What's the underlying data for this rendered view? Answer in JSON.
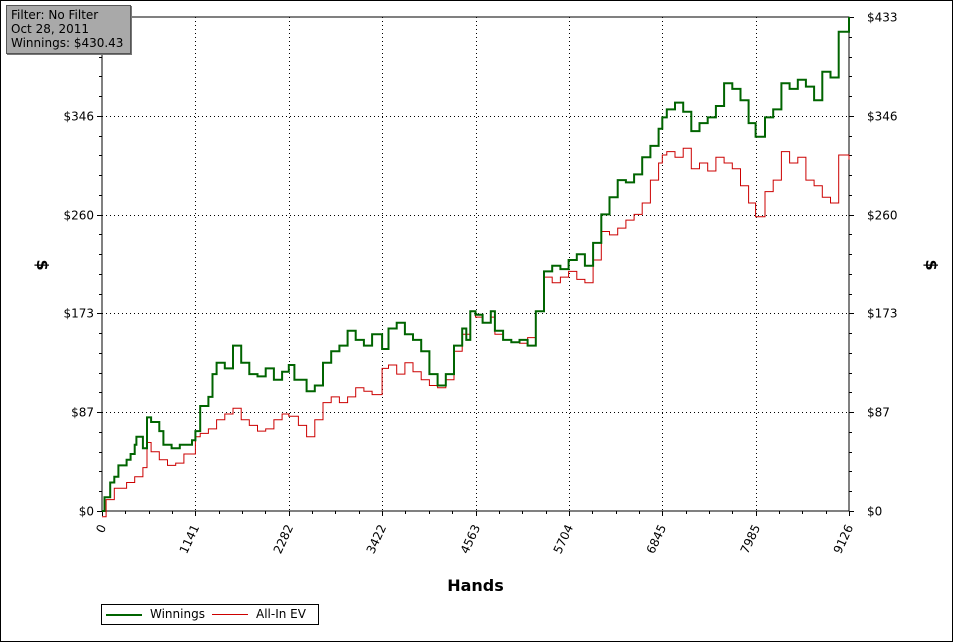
{
  "info_box": {
    "filter": "Filter: No Filter",
    "date": "Oct 28, 2011",
    "winnings": "Winnings: $430.43"
  },
  "colors": {
    "winnings": "#006400",
    "allin_ev": "#cc0000",
    "grid": "#000000"
  },
  "legend": {
    "winnings_label": "Winnings",
    "allin_label": "All-In EV"
  },
  "chart_data": {
    "type": "line",
    "title": "",
    "xlabel": "Hands",
    "ylabel": "$",
    "ylabel_right": "$",
    "x_ticks": [
      "0",
      "1141",
      "2282",
      "3422",
      "4563",
      "5704",
      "6845",
      "7985",
      "9126"
    ],
    "x_tick_values": [
      0,
      1141,
      2282,
      3422,
      4563,
      5704,
      6845,
      7985,
      9126
    ],
    "y_ticks": [
      "$0",
      "$87",
      "$173",
      "$260",
      "$346",
      "$433"
    ],
    "y_tick_values": [
      0,
      86.6,
      173.2,
      259.8,
      346.4,
      433
    ],
    "xlim": [
      0,
      9126
    ],
    "ylim": [
      0,
      433
    ],
    "grid": true,
    "legend_position": "bottom-left",
    "series": [
      {
        "name": "Winnings",
        "color": "#006400",
        "points": [
          [
            0,
            0
          ],
          [
            30,
            12
          ],
          [
            100,
            25
          ],
          [
            150,
            30
          ],
          [
            200,
            40
          ],
          [
            300,
            45
          ],
          [
            350,
            50
          ],
          [
            400,
            58
          ],
          [
            420,
            65
          ],
          [
            500,
            55
          ],
          [
            550,
            82
          ],
          [
            600,
            78
          ],
          [
            700,
            70
          ],
          [
            750,
            58
          ],
          [
            850,
            55
          ],
          [
            950,
            58
          ],
          [
            1100,
            62
          ],
          [
            1141,
            70
          ],
          [
            1200,
            92
          ],
          [
            1300,
            100
          ],
          [
            1350,
            120
          ],
          [
            1400,
            130
          ],
          [
            1500,
            125
          ],
          [
            1600,
            145
          ],
          [
            1700,
            130
          ],
          [
            1800,
            120
          ],
          [
            1900,
            118
          ],
          [
            2000,
            125
          ],
          [
            2100,
            115
          ],
          [
            2200,
            122
          ],
          [
            2282,
            128
          ],
          [
            2350,
            115
          ],
          [
            2500,
            105
          ],
          [
            2600,
            110
          ],
          [
            2700,
            130
          ],
          [
            2800,
            140
          ],
          [
            2900,
            145
          ],
          [
            3000,
            158
          ],
          [
            3100,
            150
          ],
          [
            3200,
            145
          ],
          [
            3300,
            155
          ],
          [
            3422,
            142
          ],
          [
            3500,
            160
          ],
          [
            3600,
            165
          ],
          [
            3700,
            155
          ],
          [
            3800,
            150
          ],
          [
            3900,
            140
          ],
          [
            4000,
            120
          ],
          [
            4100,
            110
          ],
          [
            4200,
            120
          ],
          [
            4300,
            145
          ],
          [
            4400,
            160
          ],
          [
            4450,
            150
          ],
          [
            4500,
            175
          ],
          [
            4563,
            172
          ],
          [
            4650,
            165
          ],
          [
            4750,
            175
          ],
          [
            4800,
            158
          ],
          [
            4900,
            150
          ],
          [
            5000,
            148
          ],
          [
            5100,
            150
          ],
          [
            5200,
            145
          ],
          [
            5300,
            175
          ],
          [
            5400,
            210
          ],
          [
            5500,
            215
          ],
          [
            5600,
            212
          ],
          [
            5700,
            220
          ],
          [
            5800,
            225
          ],
          [
            5900,
            215
          ],
          [
            6000,
            235
          ],
          [
            6100,
            260
          ],
          [
            6200,
            275
          ],
          [
            6300,
            290
          ],
          [
            6400,
            288
          ],
          [
            6500,
            295
          ],
          [
            6600,
            310
          ],
          [
            6700,
            320
          ],
          [
            6800,
            335
          ],
          [
            6845,
            345
          ],
          [
            6900,
            352
          ],
          [
            7000,
            358
          ],
          [
            7100,
            350
          ],
          [
            7200,
            333
          ],
          [
            7300,
            340
          ],
          [
            7400,
            345
          ],
          [
            7500,
            355
          ],
          [
            7600,
            375
          ],
          [
            7700,
            370
          ],
          [
            7800,
            360
          ],
          [
            7900,
            340
          ],
          [
            7985,
            328
          ],
          [
            8100,
            345
          ],
          [
            8200,
            352
          ],
          [
            8300,
            375
          ],
          [
            8400,
            370
          ],
          [
            8500,
            378
          ],
          [
            8600,
            372
          ],
          [
            8700,
            360
          ],
          [
            8800,
            385
          ],
          [
            8900,
            380
          ],
          [
            9000,
            420
          ],
          [
            9126,
            433
          ]
        ]
      },
      {
        "name": "All-In EV",
        "color": "#cc0000",
        "points": [
          [
            0,
            -5
          ],
          [
            50,
            10
          ],
          [
            150,
            20
          ],
          [
            300,
            25
          ],
          [
            400,
            30
          ],
          [
            500,
            38
          ],
          [
            550,
            60
          ],
          [
            600,
            52
          ],
          [
            700,
            45
          ],
          [
            800,
            40
          ],
          [
            900,
            42
          ],
          [
            1000,
            50
          ],
          [
            1141,
            65
          ],
          [
            1200,
            68
          ],
          [
            1300,
            72
          ],
          [
            1400,
            80
          ],
          [
            1500,
            85
          ],
          [
            1600,
            90
          ],
          [
            1700,
            80
          ],
          [
            1800,
            75
          ],
          [
            1900,
            70
          ],
          [
            2000,
            72
          ],
          [
            2100,
            80
          ],
          [
            2200,
            85
          ],
          [
            2282,
            83
          ],
          [
            2400,
            75
          ],
          [
            2500,
            65
          ],
          [
            2600,
            80
          ],
          [
            2700,
            95
          ],
          [
            2800,
            100
          ],
          [
            2900,
            95
          ],
          [
            3000,
            100
          ],
          [
            3100,
            108
          ],
          [
            3200,
            105
          ],
          [
            3300,
            102
          ],
          [
            3422,
            125
          ],
          [
            3500,
            128
          ],
          [
            3600,
            120
          ],
          [
            3700,
            130
          ],
          [
            3800,
            122
          ],
          [
            3900,
            115
          ],
          [
            4000,
            110
          ],
          [
            4100,
            108
          ],
          [
            4200,
            115
          ],
          [
            4300,
            140
          ],
          [
            4400,
            155
          ],
          [
            4500,
            175
          ],
          [
            4563,
            170
          ],
          [
            4650,
            165
          ],
          [
            4750,
            170
          ],
          [
            4800,
            155
          ],
          [
            4900,
            150
          ],
          [
            5000,
            148
          ],
          [
            5100,
            147
          ],
          [
            5200,
            152
          ],
          [
            5300,
            175
          ],
          [
            5400,
            205
          ],
          [
            5500,
            200
          ],
          [
            5600,
            205
          ],
          [
            5700,
            210
          ],
          [
            5800,
            203
          ],
          [
            5900,
            200
          ],
          [
            6000,
            220
          ],
          [
            6100,
            245
          ],
          [
            6200,
            242
          ],
          [
            6300,
            248
          ],
          [
            6400,
            255
          ],
          [
            6500,
            260
          ],
          [
            6600,
            270
          ],
          [
            6700,
            290
          ],
          [
            6800,
            305
          ],
          [
            6845,
            312
          ],
          [
            6900,
            315
          ],
          [
            7000,
            310
          ],
          [
            7100,
            318
          ],
          [
            7200,
            300
          ],
          [
            7300,
            305
          ],
          [
            7400,
            298
          ],
          [
            7500,
            310
          ],
          [
            7600,
            305
          ],
          [
            7700,
            300
          ],
          [
            7800,
            285
          ],
          [
            7900,
            270
          ],
          [
            7985,
            258
          ],
          [
            8100,
            280
          ],
          [
            8200,
            290
          ],
          [
            8300,
            315
          ],
          [
            8400,
            305
          ],
          [
            8500,
            310
          ],
          [
            8600,
            290
          ],
          [
            8700,
            285
          ],
          [
            8800,
            275
          ],
          [
            8900,
            270
          ],
          [
            9000,
            312
          ],
          [
            9126,
            308
          ]
        ]
      }
    ]
  }
}
